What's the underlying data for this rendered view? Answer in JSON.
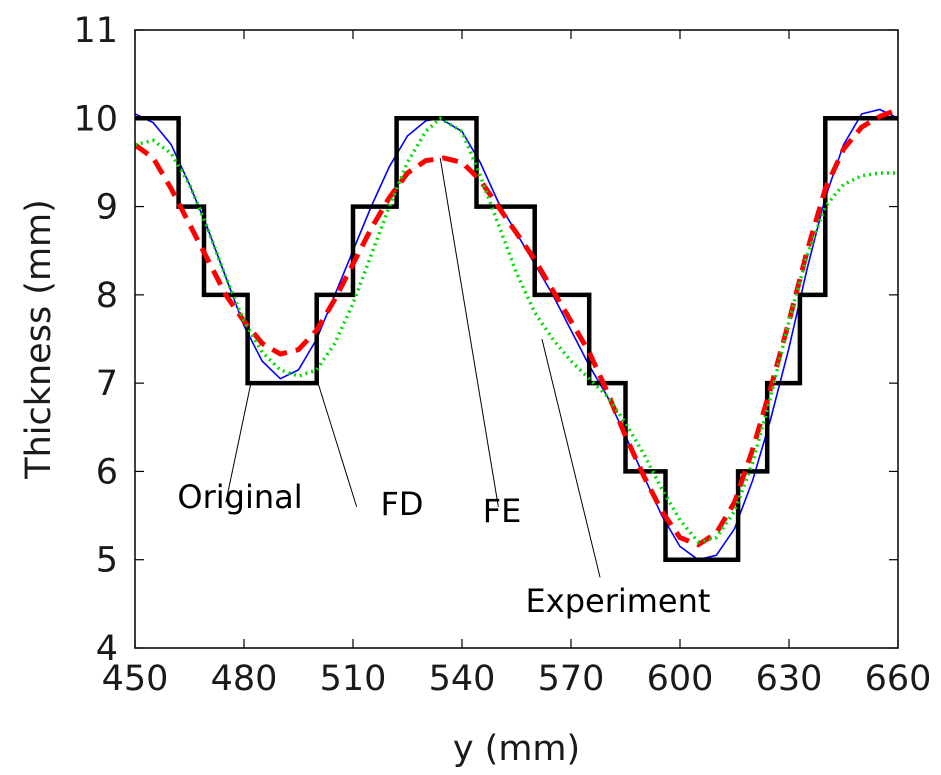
{
  "chart_data": {
    "type": "line",
    "xlabel": "y (mm)",
    "ylabel": "Thickness (mm)",
    "xlim": [
      450,
      660
    ],
    "ylim": [
      4,
      11
    ],
    "xticks": [
      "450",
      "480",
      "510",
      "540",
      "570",
      "600",
      "630",
      "660"
    ],
    "yticks": [
      "4",
      "5",
      "6",
      "7",
      "8",
      "9",
      "10",
      "11"
    ],
    "grid": false,
    "legend": "none",
    "series": [
      {
        "name": "Original",
        "color": "#000000",
        "style": "solid",
        "x": [
          450,
          462,
          462,
          469,
          469,
          481,
          481,
          500,
          500,
          510,
          510,
          522,
          522,
          544,
          544,
          560,
          560,
          575,
          575,
          585,
          585,
          596,
          596,
          616,
          616,
          624,
          624,
          633,
          633,
          640,
          640,
          660
        ],
        "y": [
          10,
          10,
          9,
          9,
          8,
          8,
          7,
          7,
          8,
          8,
          9,
          9,
          10,
          10,
          9,
          9,
          8,
          8,
          7,
          7,
          6,
          6,
          5,
          5,
          6,
          6,
          7,
          7,
          8,
          8,
          10,
          10
        ]
      },
      {
        "name": "Experiment",
        "color": "#0000ff",
        "style": "solid",
        "x": [
          450,
          455,
          460,
          465,
          470,
          475,
          480,
          485,
          490,
          495,
          500,
          505,
          510,
          515,
          520,
          525,
          530,
          534,
          540,
          545,
          550,
          555,
          560,
          565,
          570,
          575,
          580,
          585,
          590,
          595,
          600,
          605,
          610,
          615,
          620,
          625,
          630,
          635,
          640,
          645,
          650,
          655,
          660
        ],
        "y": [
          10.05,
          9.95,
          9.7,
          9.25,
          8.75,
          8.2,
          7.65,
          7.25,
          7.05,
          7.15,
          7.5,
          8.0,
          8.5,
          9.0,
          9.45,
          9.8,
          9.97,
          10.0,
          9.85,
          9.5,
          9.05,
          8.7,
          8.35,
          8.0,
          7.6,
          7.2,
          6.85,
          6.4,
          5.95,
          5.5,
          5.15,
          5.0,
          5.05,
          5.35,
          5.9,
          6.6,
          7.4,
          8.3,
          9.1,
          9.7,
          10.05,
          10.1,
          10.0
        ]
      },
      {
        "name": "FD",
        "color": "#ff0000",
        "style": "dashed",
        "x": [
          450,
          455,
          460,
          465,
          470,
          475,
          480,
          485,
          490,
          495,
          500,
          505,
          510,
          515,
          520,
          525,
          530,
          535,
          540,
          545,
          550,
          555,
          560,
          565,
          570,
          575,
          580,
          585,
          590,
          595,
          600,
          605,
          610,
          615,
          620,
          625,
          630,
          635,
          640,
          645,
          650,
          655,
          660
        ],
        "y": [
          9.7,
          9.55,
          9.2,
          8.8,
          8.4,
          8.0,
          7.7,
          7.45,
          7.33,
          7.38,
          7.6,
          7.95,
          8.35,
          8.75,
          9.1,
          9.38,
          9.52,
          9.55,
          9.5,
          9.3,
          9.0,
          8.7,
          8.4,
          8.05,
          7.7,
          7.35,
          6.9,
          6.4,
          5.95,
          5.55,
          5.25,
          5.17,
          5.3,
          5.65,
          6.25,
          6.95,
          7.7,
          8.5,
          9.2,
          9.65,
          9.9,
          10.02,
          10.1
        ]
      },
      {
        "name": "FE",
        "color": "#00dd00",
        "style": "dash-dot",
        "x": [
          450,
          455,
          460,
          465,
          470,
          475,
          480,
          485,
          490,
          495,
          500,
          505,
          510,
          515,
          520,
          525,
          530,
          534,
          540,
          545,
          550,
          555,
          560,
          565,
          570,
          575,
          580,
          585,
          590,
          595,
          600,
          605,
          610,
          615,
          620,
          625,
          630,
          635,
          640,
          645,
          650,
          655,
          660
        ],
        "y": [
          9.7,
          9.75,
          9.6,
          9.25,
          8.75,
          8.2,
          7.7,
          7.35,
          7.15,
          7.08,
          7.15,
          7.45,
          7.9,
          8.45,
          9.0,
          9.5,
          9.85,
          10.0,
          9.85,
          9.35,
          8.8,
          8.25,
          7.8,
          7.5,
          7.25,
          7.05,
          6.85,
          6.55,
          6.2,
          5.8,
          5.45,
          5.2,
          5.25,
          5.55,
          6.1,
          6.85,
          7.7,
          8.45,
          9.0,
          9.25,
          9.35,
          9.38,
          9.38
        ]
      }
    ],
    "annotations": [
      {
        "text": "Original",
        "point": [
          482,
          7.02
        ],
        "label": [
          475,
          5.65
        ]
      },
      {
        "text": "FD",
        "point": [
          500,
          7.05
        ],
        "label": [
          511,
          5.6
        ]
      },
      {
        "text": "FE",
        "point": [
          534,
          9.55
        ],
        "label": [
          550,
          5.6
        ]
      },
      {
        "text": "Experiment",
        "point": [
          562,
          7.5
        ],
        "label": [
          578,
          4.8
        ]
      }
    ]
  }
}
